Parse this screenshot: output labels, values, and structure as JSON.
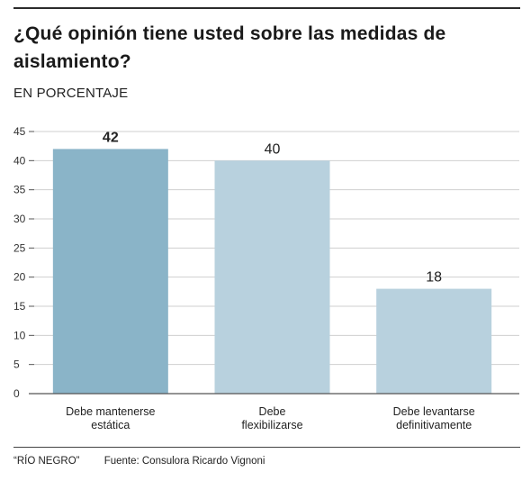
{
  "title": "¿Qué opinión tiene usted sobre las medidas de aislamiento?",
  "subtitle": "EN PORCENTAJE",
  "footer": {
    "credit": "“RÍO NEGRO”",
    "source": "Fuente: Consulora Ricardo Vignoni"
  },
  "chart_data": {
    "type": "bar",
    "categories": [
      [
        "Debe mantenerse",
        "estática"
      ],
      [
        "Debe",
        "flexibilizarse"
      ],
      [
        "Debe levantarse",
        "definitivamente"
      ]
    ],
    "values": [
      42,
      40,
      18
    ],
    "ylim": [
      0,
      45
    ],
    "yticks": [
      0,
      5,
      10,
      15,
      20,
      25,
      30,
      35,
      40,
      45
    ],
    "grid": true,
    "highlight_index": 0,
    "colors": {
      "highlight": "#8ab4c8",
      "bar": "#b8d1de",
      "grid": "#cfcfcf",
      "axis": "#555555"
    }
  }
}
